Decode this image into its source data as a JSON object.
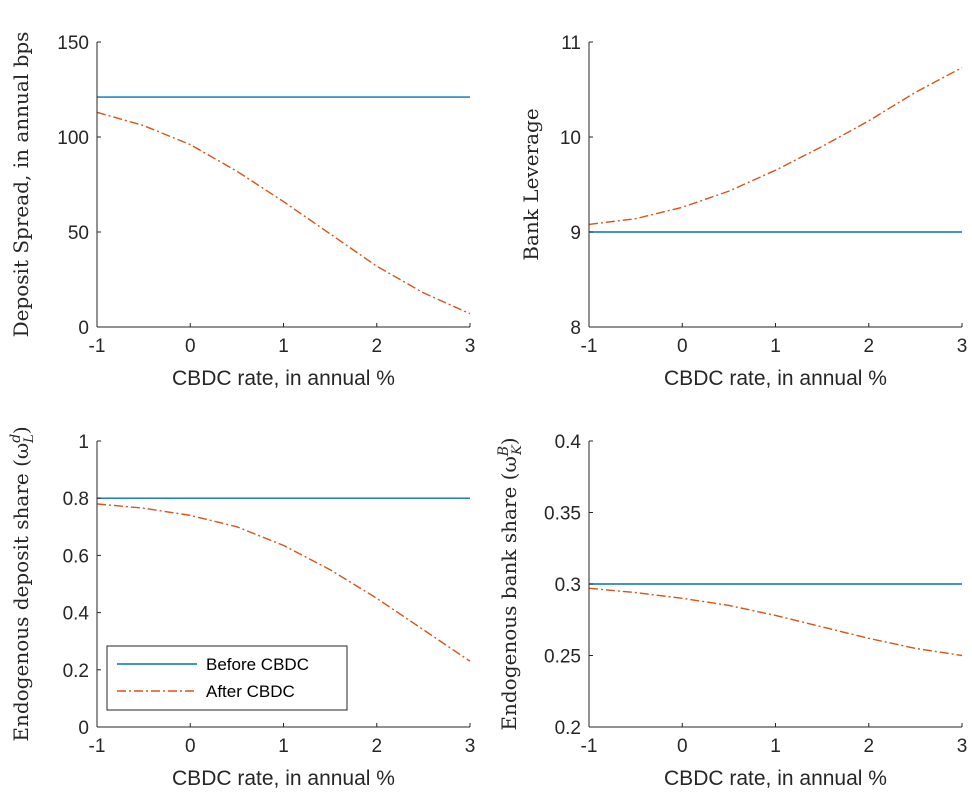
{
  "colors": {
    "before": "#0072BD",
    "after": "#D95319",
    "axis": "#262626",
    "background": "#ffffff"
  },
  "legend": {
    "items": [
      {
        "label": "Before CBDC",
        "style": "solid",
        "color": "#0072BD"
      },
      {
        "label": "After CBDC",
        "style": "dash-dot",
        "color": "#D95319"
      }
    ],
    "location": "bottom-left of lower-left panel"
  },
  "chart_data": [
    {
      "type": "line",
      "xlabel": "CBDC rate, in annual %",
      "ylabel": "Deposit Spread, in annual bps",
      "xlim": [
        -1,
        3
      ],
      "ylim": [
        0,
        150
      ],
      "xticks": [
        "-1",
        "0",
        "1",
        "2",
        "3"
      ],
      "yticks": [
        "0",
        "50",
        "100",
        "150"
      ],
      "series": [
        {
          "key": "before",
          "x": [
            -1,
            0,
            1,
            2,
            3
          ],
          "y": [
            121,
            121,
            121,
            121,
            121
          ]
        },
        {
          "key": "after",
          "x": [
            -1,
            -0.5,
            0,
            0.5,
            1,
            1.5,
            2,
            2.5,
            3
          ],
          "y": [
            113,
            106,
            96,
            82,
            66,
            49,
            32,
            18,
            7
          ]
        }
      ]
    },
    {
      "type": "line",
      "xlabel": "CBDC rate, in annual %",
      "ylabel": "Bank Leverage",
      "xlim": [
        -1,
        3
      ],
      "ylim": [
        8,
        11
      ],
      "xticks": [
        "-1",
        "0",
        "1",
        "2",
        "3"
      ],
      "yticks": [
        "8",
        "9",
        "10",
        "11"
      ],
      "series": [
        {
          "key": "before",
          "x": [
            -1,
            0,
            1,
            2,
            3
          ],
          "y": [
            9,
            9,
            9,
            9,
            9
          ]
        },
        {
          "key": "after",
          "x": [
            -1,
            -0.5,
            0,
            0.5,
            1,
            1.5,
            2,
            2.5,
            3
          ],
          "y": [
            9.08,
            9.14,
            9.26,
            9.43,
            9.65,
            9.9,
            10.17,
            10.47,
            10.73
          ]
        }
      ]
    },
    {
      "type": "line",
      "xlabel": "CBDC rate, in annual %",
      "ylabel": "Endogenous deposit share (ω",
      "ylabel_sup": "d",
      "ylabel_sub": "L",
      "ylabel_end": ")",
      "xlim": [
        -1,
        3
      ],
      "ylim": [
        0,
        1
      ],
      "xticks": [
        "-1",
        "0",
        "1",
        "2",
        "3"
      ],
      "yticks": [
        "0",
        "0.2",
        "0.4",
        "0.6",
        "0.8",
        "1"
      ],
      "series": [
        {
          "key": "before",
          "x": [
            -1,
            0,
            1,
            2,
            3
          ],
          "y": [
            0.8,
            0.8,
            0.8,
            0.8,
            0.8
          ]
        },
        {
          "key": "after",
          "x": [
            -1,
            -0.5,
            0,
            0.5,
            1,
            1.5,
            2,
            2.5,
            3
          ],
          "y": [
            0.78,
            0.765,
            0.74,
            0.7,
            0.635,
            0.55,
            0.45,
            0.34,
            0.23
          ]
        }
      ]
    },
    {
      "type": "line",
      "xlabel": "CBDC rate, in annual %",
      "ylabel": "Endogenous bank share (ω",
      "ylabel_sup": "B",
      "ylabel_sub": "K",
      "ylabel_end": ")",
      "xlim": [
        -1,
        3
      ],
      "ylim": [
        0.2,
        0.4
      ],
      "xticks": [
        "-1",
        "0",
        "1",
        "2",
        "3"
      ],
      "yticks": [
        "0.2",
        "0.25",
        "0.3",
        "0.35",
        "0.4"
      ],
      "series": [
        {
          "key": "before",
          "x": [
            -1,
            0,
            1,
            2,
            3
          ],
          "y": [
            0.3,
            0.3,
            0.3,
            0.3,
            0.3
          ]
        },
        {
          "key": "after",
          "x": [
            -1,
            -0.5,
            0,
            0.5,
            1,
            1.5,
            2,
            2.5,
            3
          ],
          "y": [
            0.297,
            0.294,
            0.29,
            0.285,
            0.278,
            0.27,
            0.262,
            0.255,
            0.25
          ]
        }
      ]
    }
  ]
}
